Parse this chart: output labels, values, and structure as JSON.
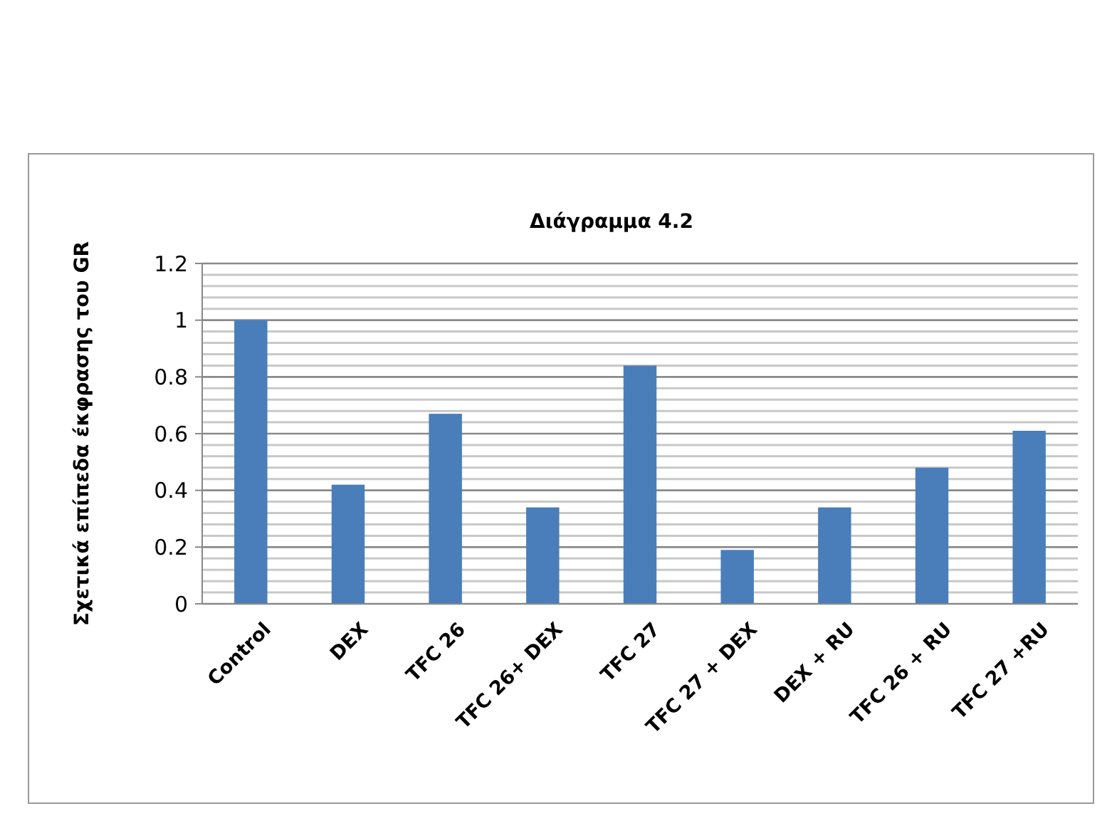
{
  "chart_data": {
    "type": "bar",
    "title": "Διάγραμμα 4.2",
    "ylabel": "Σχετικά επίπεδα έκφρασης του GR",
    "categories": [
      "Control",
      "DEX",
      "TFC 26",
      "TFC 26+ DEX",
      "TFC 27",
      "TFC 27 + DEX",
      "DEX + RU",
      "TFC 26 + RU",
      "TFC 27 +RU"
    ],
    "values": [
      1,
      0.42,
      0.67,
      0.34,
      0.84,
      0.19,
      0.34,
      0.48,
      0.61
    ],
    "color": "#4a7ebb",
    "ylim": [
      0,
      1.2
    ],
    "yticks": [
      0,
      {
        "value": 0.04,
        "label": null
      },
      {
        "value": 0.08,
        "label": null
      },
      {
        "value": 0.12,
        "label": null
      },
      {
        "value": 0.16,
        "label": null
      },
      0.2,
      {
        "value": 0.24,
        "label": null
      },
      {
        "value": 0.28,
        "label": null
      },
      {
        "value": 0.32,
        "label": null
      },
      {
        "value": 0.36,
        "label": null
      },
      0.4,
      {
        "value": 0.44,
        "label": null
      },
      {
        "value": 0.48,
        "label": null
      },
      {
        "value": 0.52,
        "label": null
      },
      {
        "value": 0.56,
        "label": null
      },
      0.6,
      {
        "value": 0.64,
        "label": null
      },
      {
        "value": 0.68,
        "label": null
      },
      {
        "value": 0.72,
        "label": null
      },
      {
        "value": 0.76,
        "label": null
      },
      0.8,
      {
        "value": 0.84,
        "label": null
      },
      {
        "value": 0.88,
        "label": null
      },
      {
        "value": 0.92,
        "label": null
      },
      {
        "value": 0.96,
        "label": null
      },
      1,
      {
        "value": 1.04,
        "label": null
      },
      {
        "value": 1.08,
        "label": null
      },
      {
        "value": 1.12,
        "label": null
      },
      {
        "value": 1.16,
        "label": null
      },
      1.2
    ],
    "grid": true
  }
}
